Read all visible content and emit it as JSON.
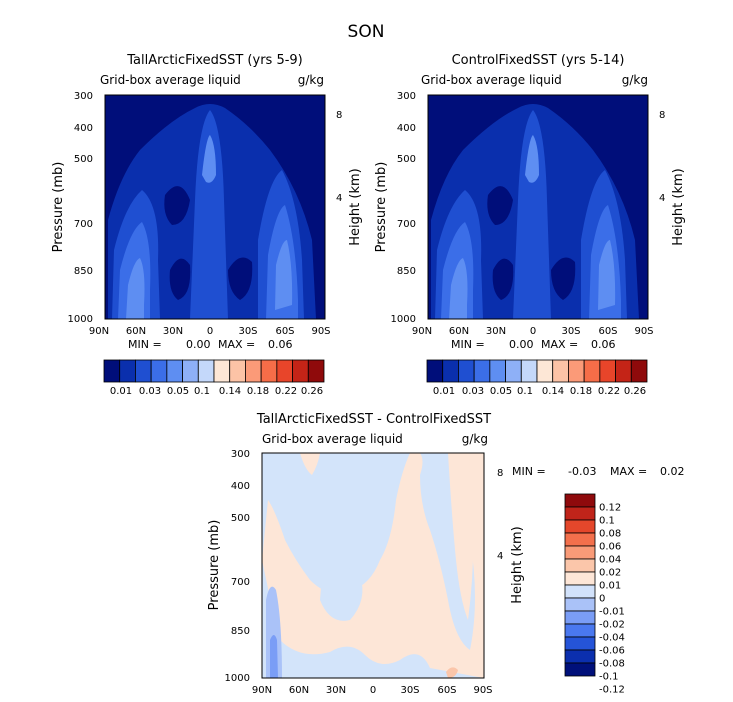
{
  "figure": {
    "season_title": "SON"
  },
  "colors": {
    "abs_scale": [
      "#000e7a",
      "#0a2fad",
      "#1f4fd1",
      "#3b6ee8",
      "#5e8ef2",
      "#8eb0f7",
      "#c4d8fa",
      "#fde7d6",
      "#fcc3a6",
      "#fb9a78",
      "#f66d48",
      "#e8452a",
      "#c42417",
      "#8f0a0b"
    ],
    "diff_scale": [
      "#00107a",
      "#0b2fae",
      "#2554d8",
      "#4a78ef",
      "#7a9df6",
      "#aac2f8",
      "#d2e2fb",
      "#fde6d7",
      "#fbc6aa",
      "#f99b78",
      "#f3704c",
      "#e4472b",
      "#c0241a",
      "#8f0a0c"
    ],
    "panel_background": "#dce9fb",
    "diff_base": "#d3e4fa",
    "diff_pos": "#fde6d7"
  },
  "chart_data": [
    {
      "type": "heatmap",
      "id": "top-left",
      "title": "TallArcticFixedSST (yrs 5-9)",
      "subtitle": "Grid-box average liquid",
      "units": "g/kg",
      "ylabel": "Pressure (mb)",
      "ylabel_right": "Height (km)",
      "x_ticks": [
        "90N",
        "60N",
        "30N",
        "0",
        "30S",
        "60S",
        "90S"
      ],
      "y_ticks": [
        "300",
        "400",
        "500",
        "700",
        "850",
        "1000"
      ],
      "y_ticks_right": [
        "8",
        "4"
      ],
      "min_label": "MIN =",
      "min_value": "0.00",
      "max_label": "MAX =",
      "max_value": "0.06",
      "min": 0.0,
      "max": 0.06,
      "colorbar_ticks": [
        "0.01",
        "0.03",
        "0.05",
        "0.1",
        "0.14",
        "0.18",
        "0.22",
        "0.26"
      ]
    },
    {
      "type": "heatmap",
      "id": "top-right",
      "title": "ControlFixedSST (yrs 5-14)",
      "subtitle": "Grid-box average liquid",
      "units": "g/kg",
      "ylabel": "Pressure (mb)",
      "ylabel_right": "Height (km)",
      "x_ticks": [
        "90N",
        "60N",
        "30N",
        "0",
        "30S",
        "60S",
        "90S"
      ],
      "y_ticks": [
        "300",
        "400",
        "500",
        "700",
        "850",
        "1000"
      ],
      "y_ticks_right": [
        "8",
        "4"
      ],
      "min_label": "MIN =",
      "min_value": "0.00",
      "max_label": "MAX =",
      "max_value": "0.06",
      "min": 0.0,
      "max": 0.06,
      "colorbar_ticks": [
        "0.01",
        "0.03",
        "0.05",
        "0.1",
        "0.14",
        "0.18",
        "0.22",
        "0.26"
      ]
    },
    {
      "type": "heatmap",
      "id": "bottom-diff",
      "title": "TallArcticFixedSST - ControlFixedSST",
      "subtitle": "Grid-box average liquid",
      "units": "g/kg",
      "ylabel": "Pressure (mb)",
      "ylabel_right": "Height (km)",
      "x_ticks": [
        "90N",
        "60N",
        "30N",
        "0",
        "30S",
        "60S",
        "90S"
      ],
      "y_ticks": [
        "300",
        "400",
        "500",
        "700",
        "850",
        "1000"
      ],
      "y_ticks_right": [
        "8",
        "4"
      ],
      "min_label": "MIN =",
      "min_value": "-0.03",
      "max_label": "MAX =",
      "max_value": "0.02",
      "min": -0.03,
      "max": 0.02,
      "colorbar_ticks": [
        "0.12",
        "0.1",
        "0.08",
        "0.06",
        "0.04",
        "0.02",
        "0.01",
        "0",
        "-0.01",
        "-0.02",
        "-0.04",
        "-0.06",
        "-0.08",
        "-0.1",
        "-0.12"
      ]
    }
  ]
}
